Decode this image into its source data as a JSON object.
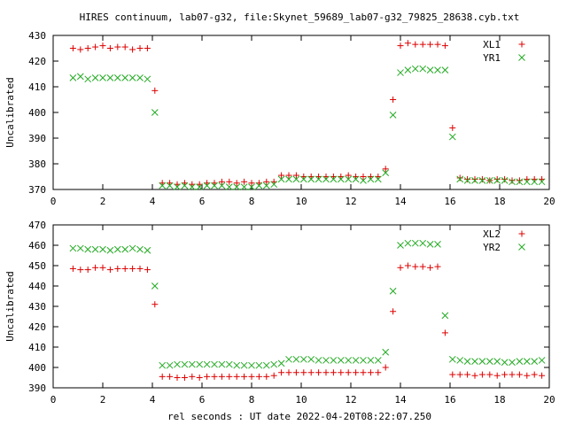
{
  "title": "HIRES continuum, lab07-g32, file:Skynet_59689_lab07-g32_79825_28638.cyb.txt",
  "xlabel": "rel seconds : UT date 2022-04-20T08:22:07.250",
  "colors": {
    "red": "#dd0000",
    "green": "#22aa22"
  },
  "chart_data": [
    {
      "type": "scatter",
      "ylabel": "Uncalibrated",
      "xlim": [
        0,
        20
      ],
      "ylim": [
        370,
        430
      ],
      "xticks": [
        0,
        2,
        4,
        6,
        8,
        10,
        12,
        14,
        16,
        18,
        20
      ],
      "yticks": [
        370,
        380,
        390,
        400,
        410,
        420,
        430
      ],
      "legend_position": "top-right",
      "series": [
        {
          "name": "XL1",
          "marker": "plus",
          "color": "#dd0000",
          "x": [
            0.8,
            1.1,
            1.4,
            1.7,
            2.0,
            2.3,
            2.6,
            2.9,
            3.2,
            3.5,
            3.8,
            4.1,
            4.4,
            4.7,
            5.0,
            5.3,
            5.6,
            5.9,
            6.2,
            6.5,
            6.8,
            7.1,
            7.4,
            7.7,
            8.0,
            8.3,
            8.6,
            8.9,
            9.2,
            9.5,
            9.8,
            10.1,
            10.4,
            10.7,
            11.0,
            11.3,
            11.6,
            11.9,
            12.2,
            12.5,
            12.8,
            13.1,
            13.4,
            13.7,
            14.0,
            14.3,
            14.6,
            14.9,
            15.2,
            15.5,
            15.8,
            16.1,
            16.4,
            16.7,
            17.0,
            17.3,
            17.6,
            17.9,
            18.2,
            18.5,
            18.8,
            19.1,
            19.4,
            19.7
          ],
          "y": [
            425,
            424.5,
            425,
            425.5,
            426,
            425,
            425.5,
            425.5,
            424.5,
            425,
            425,
            408.5,
            372.5,
            372.5,
            372,
            372.5,
            372,
            372,
            372.5,
            372.5,
            373,
            373,
            372.5,
            373,
            372.5,
            372.5,
            373,
            373,
            375.5,
            375.5,
            375.5,
            375,
            375,
            375,
            375,
            375,
            375,
            375.5,
            375,
            375,
            375,
            375,
            378,
            405,
            426,
            427,
            426.5,
            426.5,
            426.5,
            426.5,
            426,
            394,
            374.5,
            374,
            374,
            374,
            373.5,
            374,
            374,
            373.5,
            373.5,
            374,
            374,
            374
          ]
        },
        {
          "name": "YR1",
          "marker": "cross",
          "color": "#22aa22",
          "x": [
            0.8,
            1.1,
            1.4,
            1.7,
            2.0,
            2.3,
            2.6,
            2.9,
            3.2,
            3.5,
            3.8,
            4.1,
            4.4,
            4.7,
            5.0,
            5.3,
            5.6,
            5.9,
            6.2,
            6.5,
            6.8,
            7.1,
            7.4,
            7.7,
            8.0,
            8.3,
            8.6,
            8.9,
            9.2,
            9.5,
            9.8,
            10.1,
            10.4,
            10.7,
            11.0,
            11.3,
            11.6,
            11.9,
            12.2,
            12.5,
            12.8,
            13.1,
            13.4,
            13.7,
            14.0,
            14.3,
            14.6,
            14.9,
            15.2,
            15.5,
            15.8,
            16.1,
            16.4,
            16.7,
            17.0,
            17.3,
            17.6,
            17.9,
            18.2,
            18.5,
            18.8,
            19.1,
            19.4,
            19.7
          ],
          "y": [
            413.5,
            414,
            413,
            413.5,
            413.5,
            413.5,
            413.5,
            413.5,
            413.5,
            413.5,
            413,
            400,
            371.5,
            371.5,
            371,
            371.5,
            371,
            371,
            371.5,
            371.5,
            371.5,
            371,
            371,
            371,
            371,
            371.5,
            371.5,
            372,
            374,
            374,
            374,
            374,
            374,
            374,
            374,
            374,
            374,
            374,
            374,
            373.5,
            374,
            374,
            376.5,
            399,
            415.5,
            416.5,
            417,
            417,
            416.5,
            416.5,
            416.5,
            390.5,
            374,
            373.5,
            373.5,
            373.5,
            373.5,
            373.5,
            373.5,
            373,
            373,
            373,
            373,
            373
          ]
        }
      ]
    },
    {
      "type": "scatter",
      "ylabel": "Uncalibrated",
      "xlim": [
        0,
        20
      ],
      "ylim": [
        390,
        470
      ],
      "xticks": [
        0,
        2,
        4,
        6,
        8,
        10,
        12,
        14,
        16,
        18,
        20
      ],
      "yticks": [
        390,
        400,
        410,
        420,
        430,
        440,
        450,
        460,
        470
      ],
      "legend_position": "top-right",
      "series": [
        {
          "name": "XL2",
          "marker": "plus",
          "color": "#dd0000",
          "x": [
            0.8,
            1.1,
            1.4,
            1.7,
            2.0,
            2.3,
            2.6,
            2.9,
            3.2,
            3.5,
            3.8,
            4.1,
            4.4,
            4.7,
            5.0,
            5.3,
            5.6,
            5.9,
            6.2,
            6.5,
            6.8,
            7.1,
            7.4,
            7.7,
            8.0,
            8.3,
            8.6,
            8.9,
            9.2,
            9.5,
            9.8,
            10.1,
            10.4,
            10.7,
            11.0,
            11.3,
            11.6,
            11.9,
            12.2,
            12.5,
            12.8,
            13.1,
            13.4,
            13.7,
            14.0,
            14.3,
            14.6,
            14.9,
            15.2,
            15.5,
            15.8,
            16.1,
            16.4,
            16.7,
            17.0,
            17.3,
            17.6,
            17.9,
            18.2,
            18.5,
            18.8,
            19.1,
            19.4,
            19.7
          ],
          "y": [
            448.5,
            448,
            448,
            449,
            449,
            448,
            448.5,
            448.5,
            448.5,
            448.5,
            448,
            431,
            395.5,
            395.5,
            395,
            395,
            395.5,
            395,
            395.5,
            395.5,
            395.5,
            395.5,
            395.5,
            395.5,
            395.5,
            395.5,
            395.5,
            396,
            397.5,
            397.5,
            397.5,
            397.5,
            397.5,
            397.5,
            397.5,
            397.5,
            397.5,
            397.5,
            397.5,
            397.5,
            397.5,
            397.5,
            400,
            427.5,
            449,
            450,
            449.5,
            449.5,
            449,
            449.5,
            417,
            396.5,
            396.5,
            396.5,
            396,
            396.5,
            396.5,
            396,
            396.5,
            396.5,
            396.5,
            396,
            396.5,
            396
          ]
        },
        {
          "name": "YR2",
          "marker": "cross",
          "color": "#22aa22",
          "x": [
            0.8,
            1.1,
            1.4,
            1.7,
            2.0,
            2.3,
            2.6,
            2.9,
            3.2,
            3.5,
            3.8,
            4.1,
            4.4,
            4.7,
            5.0,
            5.3,
            5.6,
            5.9,
            6.2,
            6.5,
            6.8,
            7.1,
            7.4,
            7.7,
            8.0,
            8.3,
            8.6,
            8.9,
            9.2,
            9.5,
            9.8,
            10.1,
            10.4,
            10.7,
            11.0,
            11.3,
            11.6,
            11.9,
            12.2,
            12.5,
            12.8,
            13.1,
            13.4,
            13.7,
            14.0,
            14.3,
            14.6,
            14.9,
            15.2,
            15.5,
            15.8,
            16.1,
            16.4,
            16.7,
            17.0,
            17.3,
            17.6,
            17.9,
            18.2,
            18.5,
            18.8,
            19.1,
            19.4,
            19.7
          ],
          "y": [
            458.5,
            458.5,
            458,
            458,
            458,
            457.5,
            458,
            458,
            458.5,
            458,
            457.5,
            440,
            401,
            401,
            401.5,
            401.5,
            401.5,
            401.5,
            401.5,
            401.5,
            401.5,
            401.5,
            401,
            401,
            401,
            401,
            401,
            401.5,
            402,
            404,
            404,
            404,
            404,
            403.5,
            403.5,
            403.5,
            403.5,
            403.5,
            403.5,
            403.5,
            403.5,
            403.5,
            407.5,
            437.5,
            460,
            461,
            461,
            461,
            460.5,
            460.5,
            425.5,
            404,
            403.5,
            403,
            403,
            403,
            403,
            403,
            402.5,
            402.5,
            403,
            403,
            403,
            403.5
          ]
        }
      ]
    }
  ]
}
